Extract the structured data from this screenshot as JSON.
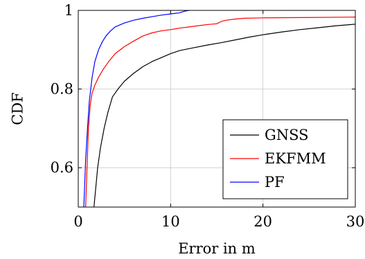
{
  "chart_data": {
    "type": "line",
    "title": "",
    "xlabel": "Error in m",
    "ylabel": "CDF",
    "xlim": [
      0,
      30
    ],
    "ylim": [
      0.5,
      1
    ],
    "xticks": [
      0,
      10,
      20,
      30
    ],
    "yticks": [
      0.6,
      0.8,
      1
    ],
    "xtick_labels": [
      "0",
      "10",
      "20",
      "30"
    ],
    "ytick_labels": [
      "0.6",
      "0.8",
      "1"
    ],
    "grid": true,
    "legend": {
      "position": "bottom-right",
      "entries": [
        "GNSS",
        "EKFMM",
        "PF"
      ]
    },
    "series": [
      {
        "name": "GNSS",
        "color": "#000000",
        "x": [
          1.7,
          1.9,
          2.1,
          2.4,
          2.8,
          3.2,
          3.7,
          4.3,
          5.0,
          6.0,
          7.0,
          8.0,
          9.0,
          10.0,
          11.0,
          12.5,
          14.0,
          15.5,
          17.0,
          18.5,
          20.0,
          22.0,
          24.0,
          26.0,
          28.0,
          30.0
        ],
        "y": [
          0.5,
          0.55,
          0.6,
          0.65,
          0.7,
          0.74,
          0.78,
          0.8,
          0.82,
          0.84,
          0.857,
          0.87,
          0.88,
          0.89,
          0.898,
          0.905,
          0.912,
          0.918,
          0.925,
          0.932,
          0.938,
          0.945,
          0.951,
          0.956,
          0.961,
          0.965
        ]
      },
      {
        "name": "EKFMM",
        "color": "#ff0000",
        "x": [
          0.8,
          0.95,
          1.1,
          1.3,
          1.5,
          1.8,
          2.2,
          2.7,
          3.3,
          4.0,
          5.0,
          6.0,
          7.0,
          8.0,
          9.0,
          10.0,
          11.0,
          12.0,
          13.0,
          14.0,
          15.0,
          15.5,
          16.0,
          17.0,
          18.0,
          20.0,
          25.0,
          30.0
        ],
        "y": [
          0.5,
          0.6,
          0.7,
          0.76,
          0.79,
          0.81,
          0.83,
          0.85,
          0.87,
          0.89,
          0.908,
          0.922,
          0.935,
          0.943,
          0.948,
          0.951,
          0.955,
          0.958,
          0.961,
          0.964,
          0.966,
          0.972,
          0.975,
          0.978,
          0.98,
          0.981,
          0.982,
          0.983
        ]
      },
      {
        "name": "PF",
        "color": "#0000ff",
        "x": [
          0.6,
          0.8,
          1.0,
          1.2,
          1.5,
          1.8,
          2.2,
          2.6,
          3.0,
          3.5,
          4.0,
          5.0,
          6.0,
          7.0,
          8.0,
          9.0,
          10.0,
          11.0,
          11.5,
          12.0
        ],
        "y": [
          0.5,
          0.62,
          0.7,
          0.77,
          0.83,
          0.87,
          0.9,
          0.92,
          0.935,
          0.948,
          0.958,
          0.968,
          0.975,
          0.98,
          0.984,
          0.988,
          0.991,
          0.994,
          0.998,
          1.0
        ]
      }
    ]
  }
}
